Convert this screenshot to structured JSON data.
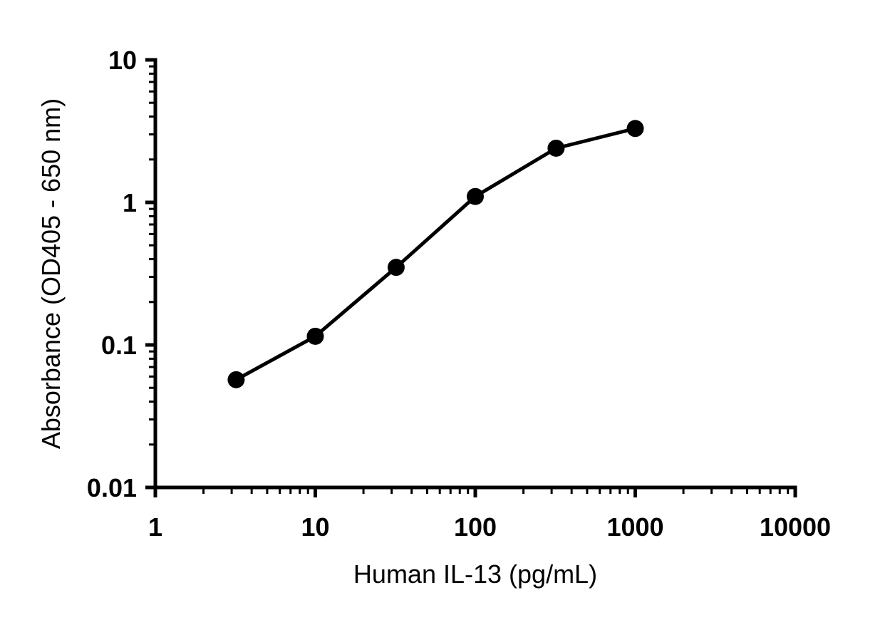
{
  "chart_data": {
    "type": "line",
    "title": "",
    "xlabel": "Human IL-13 (pg/mL)",
    "ylabel": "Absorbance (OD405 - 650 nm)",
    "x_scale": "log",
    "y_scale": "log",
    "xlim": [
      1,
      10000
    ],
    "ylim": [
      0.01,
      10
    ],
    "x_ticks": [
      "1",
      "10",
      "100",
      "1000",
      "10000"
    ],
    "y_ticks": [
      "0.01",
      "0.1",
      "1",
      "10"
    ],
    "grid": false,
    "legend": "none",
    "series": [
      {
        "color": "#000000",
        "marker": "circle",
        "x": [
          3.2,
          10,
          32,
          100,
          320,
          1000
        ],
        "y": [
          0.057,
          0.115,
          0.35,
          1.1,
          2.4,
          3.3
        ]
      }
    ]
  }
}
